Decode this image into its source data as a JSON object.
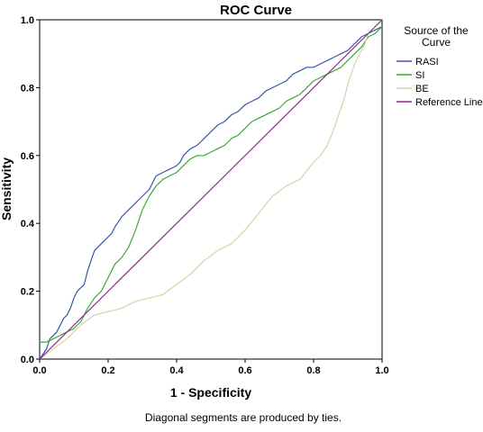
{
  "chart_data": {
    "type": "line",
    "title": "ROC Curve",
    "xlabel": "1 - Specificity",
    "ylabel": "Sensitivity",
    "xlim": [
      0,
      1
    ],
    "ylim": [
      0,
      1
    ],
    "xticks": [
      "0.0",
      "0.2",
      "0.4",
      "0.6",
      "0.8",
      "1.0"
    ],
    "yticks": [
      "0.0",
      "0.2",
      "0.4",
      "0.6",
      "0.8",
      "1.0"
    ],
    "grid": false,
    "legend": {
      "title": "Source of the Curve",
      "placement": "right"
    },
    "footnote": "Diagonal segments are produced by ties.",
    "series": [
      {
        "name": "RASI",
        "color": "#3a56a8",
        "x": [
          0,
          0.02,
          0.03,
          0.05,
          0.06,
          0.07,
          0.08,
          0.09,
          0.1,
          0.11,
          0.12,
          0.13,
          0.14,
          0.15,
          0.16,
          0.18,
          0.2,
          0.21,
          0.22,
          0.24,
          0.26,
          0.28,
          0.3,
          0.32,
          0.33,
          0.34,
          0.36,
          0.38,
          0.4,
          0.41,
          0.42,
          0.44,
          0.46,
          0.48,
          0.5,
          0.52,
          0.54,
          0.56,
          0.58,
          0.6,
          0.62,
          0.64,
          0.66,
          0.68,
          0.7,
          0.72,
          0.74,
          0.76,
          0.78,
          0.8,
          0.82,
          0.84,
          0.86,
          0.88,
          0.9,
          0.92,
          0.94,
          0.96,
          0.98,
          1.0
        ],
        "y": [
          0,
          0.03,
          0.06,
          0.08,
          0.1,
          0.12,
          0.13,
          0.15,
          0.18,
          0.2,
          0.21,
          0.22,
          0.26,
          0.29,
          0.32,
          0.34,
          0.36,
          0.37,
          0.39,
          0.42,
          0.44,
          0.46,
          0.48,
          0.5,
          0.52,
          0.54,
          0.55,
          0.56,
          0.57,
          0.58,
          0.6,
          0.62,
          0.63,
          0.65,
          0.67,
          0.69,
          0.7,
          0.72,
          0.73,
          0.75,
          0.76,
          0.77,
          0.79,
          0.8,
          0.81,
          0.82,
          0.84,
          0.85,
          0.86,
          0.86,
          0.87,
          0.88,
          0.89,
          0.9,
          0.91,
          0.93,
          0.95,
          0.96,
          0.97,
          0.98
        ]
      },
      {
        "name": "SI",
        "color": "#3aaa35",
        "x": [
          0,
          0.02,
          0.04,
          0.06,
          0.08,
          0.1,
          0.12,
          0.13,
          0.14,
          0.16,
          0.18,
          0.2,
          0.22,
          0.24,
          0.26,
          0.28,
          0.3,
          0.32,
          0.34,
          0.36,
          0.38,
          0.4,
          0.42,
          0.44,
          0.46,
          0.48,
          0.5,
          0.52,
          0.54,
          0.56,
          0.58,
          0.6,
          0.62,
          0.64,
          0.66,
          0.68,
          0.7,
          0.72,
          0.74,
          0.76,
          0.78,
          0.8,
          0.82,
          0.84,
          0.86,
          0.88,
          0.9,
          0.92,
          0.94,
          0.96,
          0.98,
          1.0
        ],
        "y": [
          0.05,
          0.05,
          0.06,
          0.07,
          0.08,
          0.09,
          0.11,
          0.13,
          0.15,
          0.18,
          0.2,
          0.24,
          0.28,
          0.3,
          0.33,
          0.38,
          0.44,
          0.48,
          0.51,
          0.53,
          0.54,
          0.55,
          0.57,
          0.59,
          0.6,
          0.6,
          0.61,
          0.62,
          0.63,
          0.65,
          0.66,
          0.68,
          0.7,
          0.71,
          0.72,
          0.73,
          0.74,
          0.76,
          0.77,
          0.78,
          0.8,
          0.82,
          0.83,
          0.84,
          0.85,
          0.86,
          0.88,
          0.9,
          0.92,
          0.95,
          0.96,
          0.98
        ]
      },
      {
        "name": "BE",
        "color": "#d8d2a6",
        "x": [
          0,
          0.04,
          0.08,
          0.12,
          0.16,
          0.2,
          0.24,
          0.28,
          0.32,
          0.36,
          0.4,
          0.44,
          0.48,
          0.52,
          0.56,
          0.6,
          0.64,
          0.68,
          0.72,
          0.76,
          0.8,
          0.82,
          0.84,
          0.86,
          0.88,
          0.89,
          0.9,
          0.91,
          0.92,
          0.93,
          0.94,
          0.95,
          0.96,
          0.98,
          1.0
        ],
        "y": [
          0,
          0.03,
          0.06,
          0.1,
          0.13,
          0.14,
          0.15,
          0.17,
          0.18,
          0.19,
          0.22,
          0.25,
          0.29,
          0.32,
          0.34,
          0.38,
          0.43,
          0.48,
          0.51,
          0.53,
          0.58,
          0.6,
          0.63,
          0.68,
          0.74,
          0.77,
          0.81,
          0.84,
          0.87,
          0.89,
          0.91,
          0.93,
          0.96,
          0.98,
          1.0
        ]
      },
      {
        "name": "Reference Line",
        "color": "#8b2a8b",
        "x": [
          0,
          1
        ],
        "y": [
          0,
          1
        ]
      }
    ]
  }
}
